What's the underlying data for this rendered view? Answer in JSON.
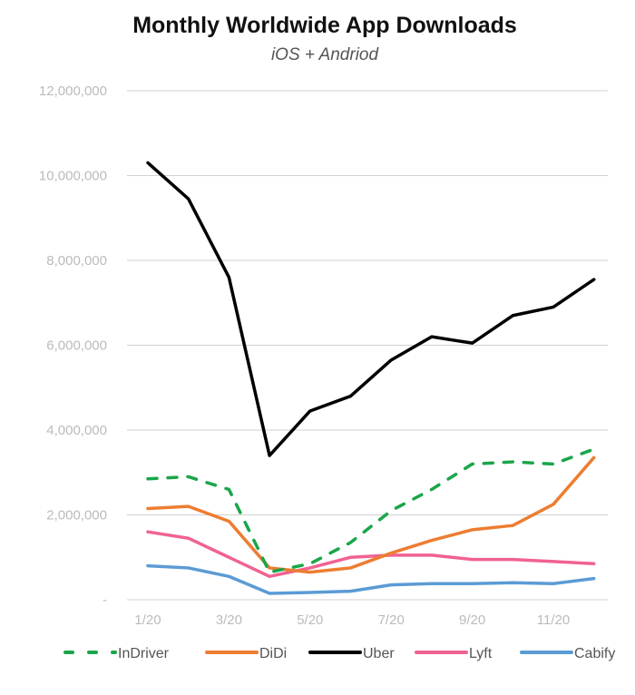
{
  "chart_data": {
    "type": "line",
    "title": "Monthly Worldwide App Downloads",
    "subtitle": "iOS + Andriod",
    "xlabel": "",
    "ylabel": "",
    "x": [
      "1/20",
      "2/20",
      "3/20",
      "4/20",
      "5/20",
      "6/20",
      "7/20",
      "8/20",
      "9/20",
      "10/20",
      "11/20",
      "12/20"
    ],
    "x_tick_labels": [
      "1/20",
      "3/20",
      "5/20",
      "7/20",
      "9/20",
      "11/20"
    ],
    "y_tick_labels": [
      "12,000,000",
      "10,000,000",
      "8,000,000",
      "6,000,000",
      "4,000,000",
      "2,000,000",
      "-"
    ],
    "ylim": [
      0,
      12000000
    ],
    "grid": true,
    "legend_position": "bottom",
    "series": [
      {
        "name": "InDriver",
        "color": "#1aa64a",
        "dashed": true,
        "values": [
          2850000,
          2900000,
          2600000,
          650000,
          850000,
          1350000,
          2100000,
          2600000,
          3200000,
          3250000,
          3200000,
          3550000
        ]
      },
      {
        "name": "DiDi",
        "color": "#ed7d31",
        "dashed": false,
        "values": [
          2150000,
          2200000,
          1850000,
          750000,
          650000,
          750000,
          1100000,
          1400000,
          1650000,
          1750000,
          2250000,
          3350000
        ]
      },
      {
        "name": "Uber",
        "color": "#000000",
        "dashed": false,
        "values": [
          10300000,
          9450000,
          7600000,
          3400000,
          4450000,
          4800000,
          5650000,
          6200000,
          6050000,
          6700000,
          6900000,
          7550000
        ]
      },
      {
        "name": "Lyft",
        "color": "#f06292",
        "dashed": false,
        "values": [
          1600000,
          1450000,
          1000000,
          550000,
          750000,
          1000000,
          1050000,
          1050000,
          950000,
          950000,
          900000,
          850000
        ]
      },
      {
        "name": "Cabify",
        "color": "#5b9bd5",
        "dashed": false,
        "values": [
          800000,
          750000,
          550000,
          150000,
          170000,
          200000,
          350000,
          380000,
          380000,
          400000,
          380000,
          500000
        ]
      }
    ]
  }
}
